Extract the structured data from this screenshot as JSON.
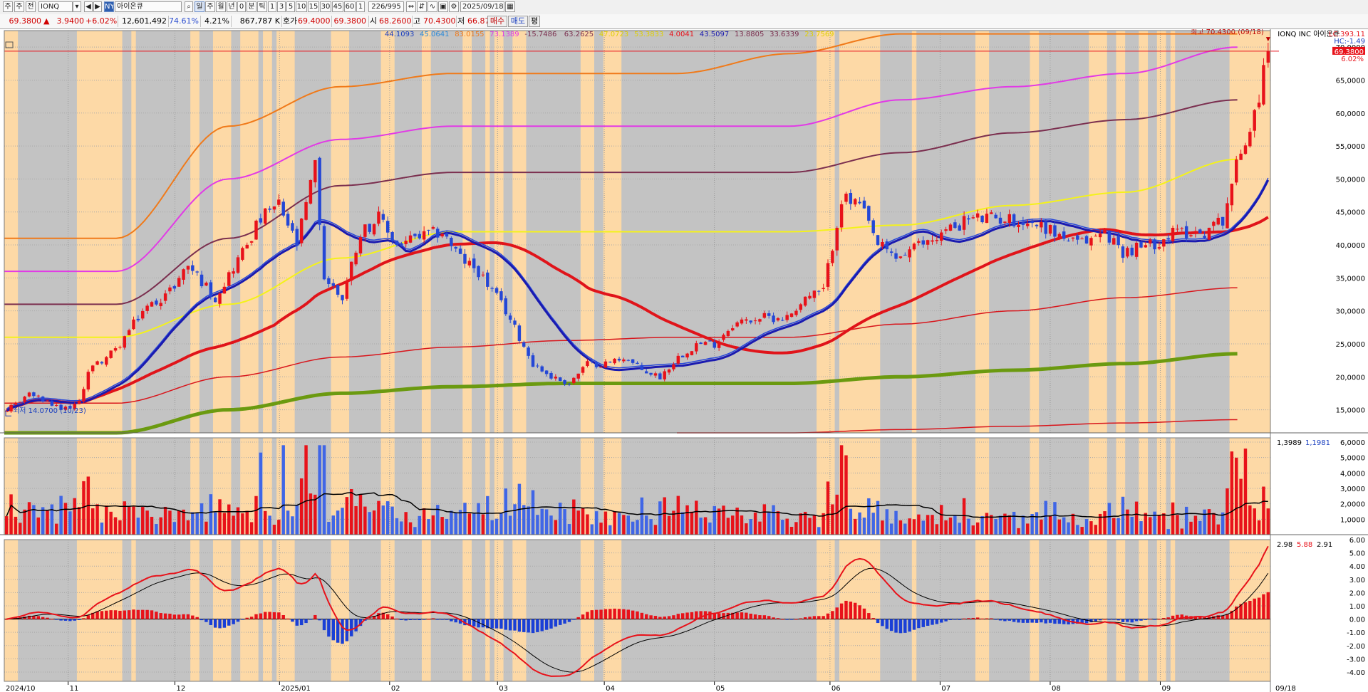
{
  "toolbar": {
    "period_buttons": [
      "주",
      "주",
      "전"
    ],
    "symbol": "IONQ",
    "exchange_badge": "NY",
    "stock_name": "아이온큐",
    "tf_buttons": [
      "일",
      "주",
      "월",
      "년",
      "0",
      "분",
      "틱",
      "1",
      "3",
      "5",
      "10",
      "15",
      "30",
      "45",
      "60",
      "1"
    ],
    "record_count": "226/995",
    "date": "2025/09/18"
  },
  "quote": {
    "price": "69.3800",
    "change": "3.9400",
    "change_pct": "+6.02%",
    "volume": "12,601,492",
    "vol_ratio": "74.61%",
    "turnover": "4.21%",
    "amount": "867,787 K",
    "bid_label": "호가",
    "bid": "69.4000",
    "ask": "69.3800",
    "open_label": "시",
    "open": "68.2600",
    "high_label": "고",
    "high": "70.4300",
    "low_label": "저",
    "low": "66.8750",
    "buy_label": "매수",
    "sell_label": "매도",
    "eval_label": "평"
  },
  "legend": {
    "v1": "44.1093",
    "v2": "45.0641",
    "v3": "83.0155",
    "v4": "73.1389",
    "v5": "-15.7486",
    "v6": "63.2625",
    "v7": "47.0723",
    "v8": "53.3833",
    "v9": "4.0041",
    "v10": "43.5097",
    "v11": "13.8805",
    "v12": "33.6339",
    "v13": "23.7569",
    "name": "IONQ INC  아이온큐",
    "lc": "LC:393.11",
    "hc": "HC:-1.49",
    "high_marker": "최고 70.4300 (09/18)",
    "low_marker": "최저 14.0700 (10/23)",
    "last_price_tag": "69.3800",
    "last_pct_tag": "6.02%"
  },
  "price_axis": [
    "70,0000",
    "65,0000",
    "60,0000",
    "55,0000",
    "50,0000",
    "45,0000",
    "40,0000",
    "35,0000",
    "30,0000",
    "25,0000",
    "20,0000",
    "15,0000"
  ],
  "volume_panel": {
    "v1": "1,3989",
    "v2": "1,1981",
    "axis": [
      "6,0000",
      "5,0000",
      "4,0000",
      "3,0000",
      "2,0000",
      "1,0000"
    ]
  },
  "macd_panel": {
    "v1": "2.98",
    "v2": "5.88",
    "v3": "2.91",
    "axis": [
      "6.00",
      "5.00",
      "4.00",
      "3.00",
      "2.00",
      "1.00",
      "0.00",
      "-1.00",
      "-2.00",
      "-3.00",
      "-4.00"
    ]
  },
  "x_labels": [
    {
      "text": "2024/10",
      "month": 0
    },
    {
      "text": "11",
      "month": 0.58
    },
    {
      "text": "12",
      "month": 1.55
    },
    {
      "text": "2025/01",
      "month": 2.5
    },
    {
      "text": "02",
      "month": 3.5
    },
    {
      "text": "03",
      "month": 4.48
    },
    {
      "text": "04",
      "month": 5.45
    },
    {
      "text": "05",
      "month": 6.45
    },
    {
      "text": "06",
      "month": 7.5
    },
    {
      "text": "07",
      "month": 8.5
    },
    {
      "text": "08",
      "month": 9.5
    },
    {
      "text": "09",
      "month": 10.5
    },
    {
      "text": "09/18",
      "month": 11.4
    }
  ],
  "chart_data": {
    "type": "candlestick",
    "y_range": [
      11.5,
      72.5
    ],
    "current_price": 69.38,
    "all_time_high": 70.43,
    "period_low": 14.07,
    "price_anchors": [
      [
        0,
        15
      ],
      [
        5,
        17.5
      ],
      [
        12,
        15
      ],
      [
        16,
        16
      ],
      [
        18,
        21
      ],
      [
        24,
        24
      ],
      [
        30,
        30
      ],
      [
        36,
        33
      ],
      [
        40,
        37
      ],
      [
        46,
        32
      ],
      [
        52,
        39
      ],
      [
        56,
        44
      ],
      [
        60,
        46
      ],
      [
        64,
        40
      ],
      [
        68,
        52
      ],
      [
        70,
        35
      ],
      [
        74,
        32
      ],
      [
        78,
        42
      ],
      [
        82,
        44
      ],
      [
        86,
        40
      ],
      [
        90,
        41
      ],
      [
        96,
        42
      ],
      [
        100,
        38
      ],
      [
        104,
        36
      ],
      [
        110,
        30
      ],
      [
        116,
        22
      ],
      [
        120,
        20
      ],
      [
        124,
        19
      ],
      [
        128,
        22
      ],
      [
        132,
        22
      ],
      [
        136,
        23
      ],
      [
        140,
        21
      ],
      [
        144,
        20
      ],
      [
        148,
        23
      ],
      [
        152,
        25
      ],
      [
        156,
        25
      ],
      [
        160,
        28
      ],
      [
        166,
        29
      ],
      [
        172,
        29
      ],
      [
        176,
        32
      ],
      [
        180,
        33
      ],
      [
        184,
        47
      ],
      [
        188,
        46
      ],
      [
        192,
        40
      ],
      [
        196,
        38
      ],
      [
        204,
        41
      ],
      [
        212,
        44
      ],
      [
        220,
        44
      ],
      [
        228,
        43
      ],
      [
        236,
        40
      ],
      [
        242,
        42
      ],
      [
        246,
        39
      ],
      [
        252,
        40
      ],
      [
        258,
        42
      ],
      [
        264,
        42
      ],
      [
        268,
        44
      ],
      [
        271,
        52
      ],
      [
        274,
        58
      ],
      [
        276,
        63
      ],
      [
        278,
        69.4
      ]
    ],
    "ma_bands": [
      {
        "name": "orange",
        "values": [
          41,
          41,
          58,
          64,
          66,
          66,
          66,
          69,
          72,
          72,
          72,
          72
        ]
      },
      {
        "name": "magenta",
        "values": [
          36,
          36,
          50,
          56,
          58,
          58,
          58,
          58,
          62,
          64,
          66,
          70
        ]
      },
      {
        "name": "purple",
        "values": [
          31,
          31,
          41,
          49,
          51,
          51,
          51,
          51,
          54,
          57,
          59,
          62
        ]
      },
      {
        "name": "yellow",
        "values": [
          26,
          26,
          31,
          38,
          42,
          42,
          42,
          42,
          43,
          46,
          48,
          53
        ]
      },
      {
        "name": "red-thin",
        "values": [
          16,
          16,
          20,
          23,
          24.5,
          25.5,
          26,
          26,
          28,
          30,
          32,
          33.5
        ]
      },
      {
        "name": "green",
        "values": [
          11.5,
          11.5,
          15,
          17.5,
          18.5,
          19,
          19,
          19,
          20,
          21,
          22,
          23.5
        ]
      },
      {
        "name": "red-low",
        "values": [
          null,
          null,
          null,
          null,
          null,
          null,
          11.5,
          11.5,
          12,
          12.5,
          13,
          13.5
        ]
      }
    ],
    "volume_axis": [
      0,
      6
    ],
    "macd_axis": [
      -4.7,
      6.0
    ]
  }
}
